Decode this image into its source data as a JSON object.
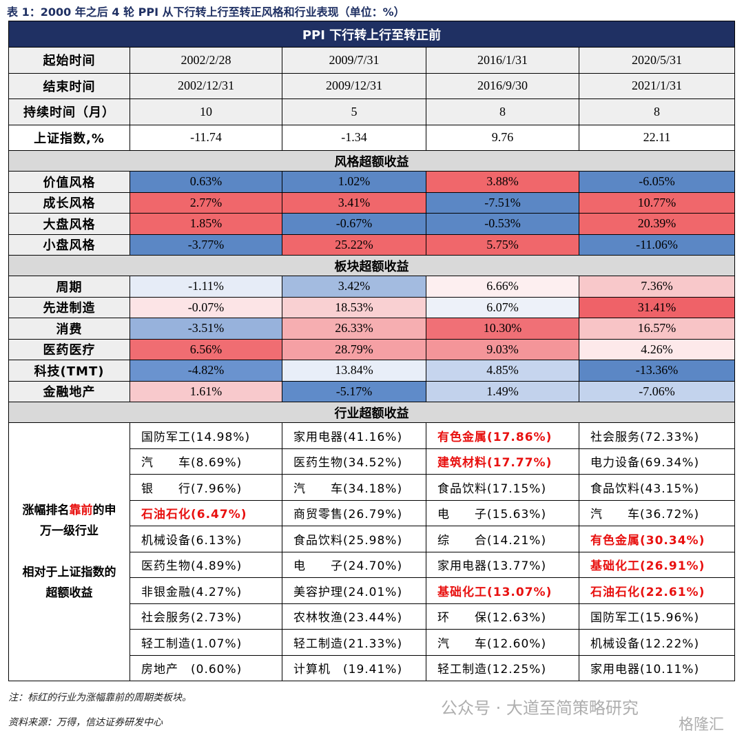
{
  "caption": "表 1：2000 年之后 4 轮 PPI 从下行转上行至转正风格和行业表现（单位：%）",
  "table": {
    "title": "PPI 下行转上行至转正前",
    "info_rows": [
      {
        "label": "起始时间",
        "cells": [
          "2002/2/28",
          "2009/7/31",
          "2016/1/31",
          "2020/5/31"
        ],
        "background": "#efefef"
      },
      {
        "label": "结束时间",
        "cells": [
          "2002/12/31",
          "2009/12/31",
          "2016/9/30",
          "2021/1/31"
        ],
        "background": "#efefef"
      },
      {
        "label": "持续时间（月）",
        "cells": [
          "10",
          "5",
          "8",
          "8"
        ],
        "background": "#efefef"
      },
      {
        "label": "上证指数,%",
        "cells": [
          "-11.74",
          "-1.34",
          "9.76",
          "22.11"
        ],
        "background": "#ffffff"
      }
    ],
    "sections": [
      {
        "title": "风格超额收益",
        "rows": [
          {
            "label": "价值风格",
            "cells": [
              "0.63%",
              "1.02%",
              "3.88%",
              "-6.05%"
            ],
            "colors": [
              "#5b87c5",
              "#5b87c5",
              "#f0676b",
              "#5b87c5"
            ]
          },
          {
            "label": "成长风格",
            "cells": [
              "2.77%",
              "3.41%",
              "-7.51%",
              "10.77%"
            ],
            "colors": [
              "#f0676b",
              "#f0676b",
              "#5b87c5",
              "#f0676b"
            ]
          },
          {
            "label": "大盘风格",
            "cells": [
              "1.85%",
              "-0.67%",
              "-0.53%",
              "20.39%"
            ],
            "colors": [
              "#f0676b",
              "#5b87c5",
              "#5b87c5",
              "#f0676b"
            ]
          },
          {
            "label": "小盘风格",
            "cells": [
              "-3.77%",
              "25.22%",
              "5.75%",
              "-11.06%"
            ],
            "colors": [
              "#5b87c5",
              "#f0676b",
              "#f0676b",
              "#5b87c5"
            ]
          }
        ]
      },
      {
        "title": "板块超额收益",
        "rows": [
          {
            "label": "周期",
            "cells": [
              "-1.11%",
              "3.42%",
              "6.66%",
              "7.36%"
            ],
            "colors": [
              "#e6ecf7",
              "#a3bbe0",
              "#fdeff0",
              "#f8c8ca"
            ]
          },
          {
            "label": "先进制造",
            "cells": [
              "-0.07%",
              "18.53%",
              "6.07%",
              "31.41%"
            ],
            "colors": [
              "#fce4e6",
              "#f9d0d2",
              "#edf1f9",
              "#ef6268"
            ]
          },
          {
            "label": "消费",
            "cells": [
              "-3.51%",
              "26.33%",
              "10.30%",
              "16.57%"
            ],
            "colors": [
              "#97b2dc",
              "#f6aeb1",
              "#f07076",
              "#f8c4c6"
            ]
          },
          {
            "label": "医药医疗",
            "cells": [
              "6.56%",
              "28.79%",
              "9.03%",
              "4.26%"
            ],
            "colors": [
              "#f06d72",
              "#f5a0a4",
              "#f49599",
              "#fde9ea"
            ]
          },
          {
            "label": "科技(TMT)",
            "cells": [
              "-4.82%",
              "13.84%",
              "4.85%",
              "-13.36%"
            ],
            "colors": [
              "#6a93cf",
              "#e8eef8",
              "#c6d5ee",
              "#5b87c5"
            ]
          },
          {
            "label": "金融地产",
            "cells": [
              "1.61%",
              "-5.17%",
              "1.49%",
              "-7.06%"
            ],
            "colors": [
              "#f8c9cc",
              "#5f8bc9",
              "#c2d2ec",
              "#c3d3ed"
            ]
          }
        ]
      },
      {
        "title": "行业超额收益",
        "label_parts": [
          "涨幅排名",
          "靠前",
          "的申万一级行业"
        ],
        "label_note": "相对于上证指数的超额收益",
        "highlight_color": "#e8100f",
        "rows": [
          {
            "cells": [
              "国防军工(14.98%)",
              "家用电器(41.16%)",
              "有色金属(17.86%)",
              "社会服务(72.33%)"
            ],
            "highlight": [
              false,
              false,
              true,
              false
            ]
          },
          {
            "cells": [
              "汽　　车(8.69%)",
              "医药生物(34.52%)",
              "建筑材料(17.77%)",
              "电力设备(69.34%)"
            ],
            "highlight": [
              false,
              false,
              true,
              false
            ]
          },
          {
            "cells": [
              "银　　行(7.96%)",
              "汽　　车(34.18%)",
              "食品饮料(17.15%)",
              "食品饮料(43.15%)"
            ],
            "highlight": [
              false,
              false,
              false,
              false
            ]
          },
          {
            "cells": [
              "石油石化(6.47%)",
              "商贸零售(26.79%)",
              "电　　子(15.63%)",
              "汽　　车(36.72%)"
            ],
            "highlight": [
              true,
              false,
              false,
              false
            ]
          },
          {
            "cells": [
              "机械设备(6.13%)",
              "食品饮料(25.98%)",
              "综　　合(14.21%)",
              "有色金属(30.34%)"
            ],
            "highlight": [
              false,
              false,
              false,
              true
            ]
          },
          {
            "cells": [
              "医药生物(4.89%)",
              "电　　子(24.70%)",
              "家用电器(13.77%)",
              "基础化工(26.91%)"
            ],
            "highlight": [
              false,
              false,
              false,
              true
            ]
          },
          {
            "cells": [
              "非银金融(4.27%)",
              "美容护理(24.01%)",
              "基础化工(13.07%)",
              "石油石化(22.61%)"
            ],
            "highlight": [
              false,
              false,
              true,
              true
            ]
          },
          {
            "cells": [
              "社会服务(2.73%)",
              "农林牧渔(23.44%)",
              "环　　保(12.63%)",
              "国防军工(15.96%)"
            ],
            "highlight": [
              false,
              false,
              false,
              false
            ]
          },
          {
            "cells": [
              "轻工制造(1.07%)",
              "轻工制造(21.33%)",
              "汽　　车(12.60%)",
              "机械设备(12.22%)"
            ],
            "highlight": [
              false,
              false,
              false,
              false
            ]
          },
          {
            "cells": [
              "房地产　(0.60%)",
              "计算机　(19.41%)",
              "轻工制造(12.25%)",
              "家用电器(10.11%)"
            ],
            "highlight": [
              false,
              false,
              false,
              false
            ]
          }
        ]
      }
    ]
  },
  "notes": [
    "注：标红的行业为涨幅靠前的周期类板块。",
    "资料来源：万得，信达证券研发中心"
  ],
  "watermark": [
    "公众号 · 大道至简策略研究",
    "格隆汇"
  ]
}
